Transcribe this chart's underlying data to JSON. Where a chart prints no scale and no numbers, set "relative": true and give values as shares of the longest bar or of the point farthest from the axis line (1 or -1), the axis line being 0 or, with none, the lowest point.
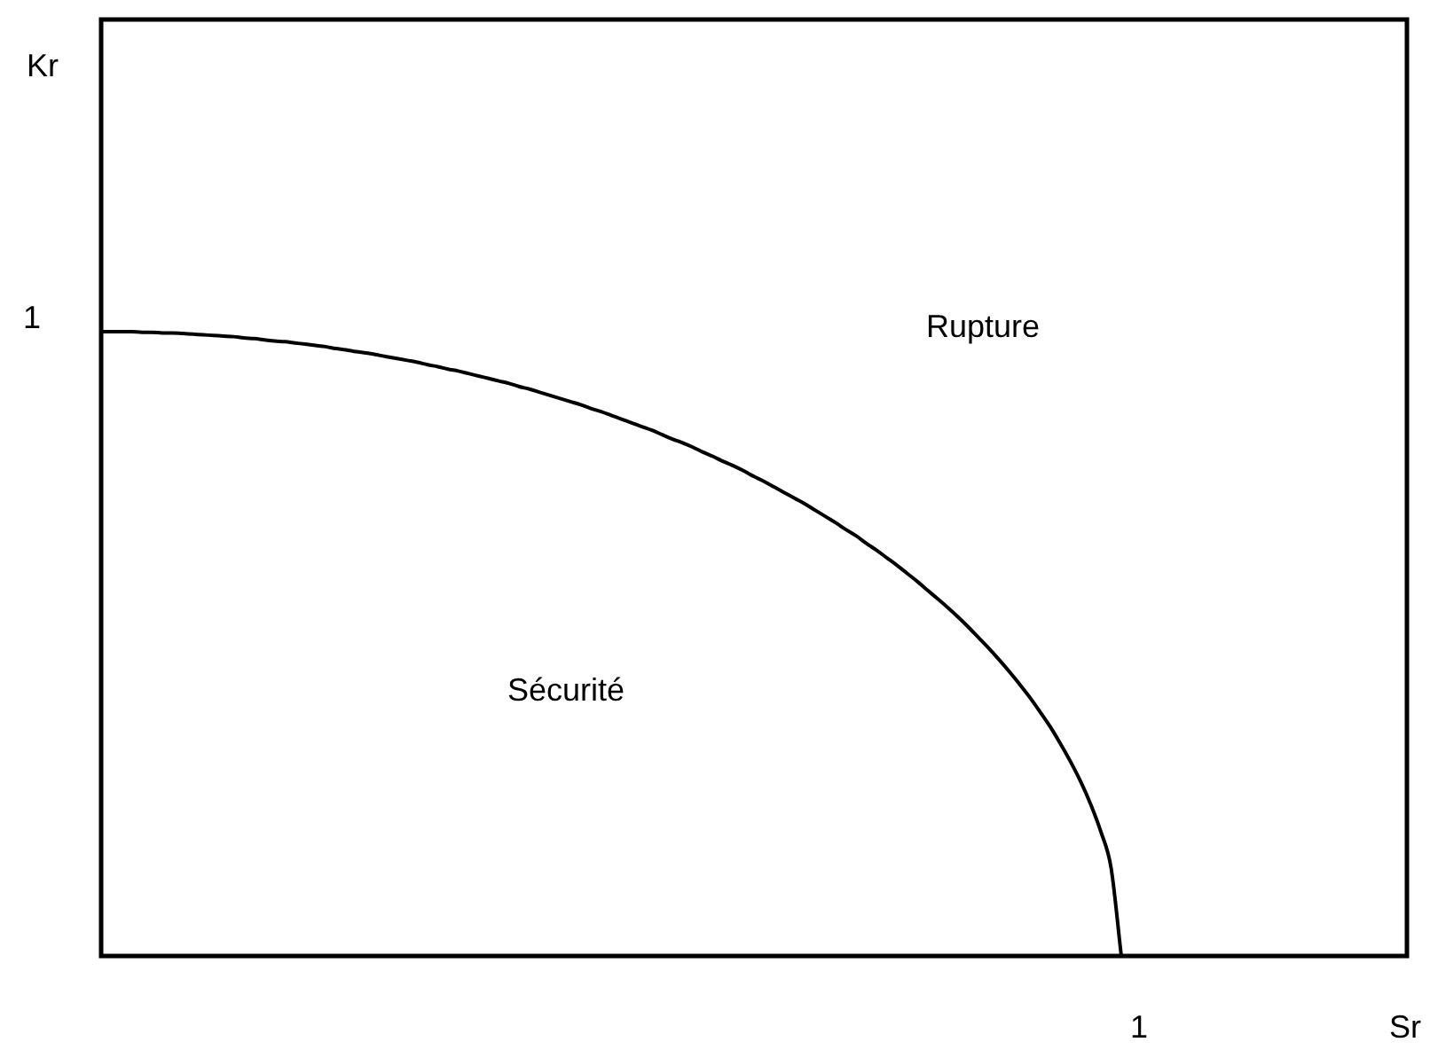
{
  "chart_data": {
    "type": "line",
    "relative": true,
    "categories": [
      null,
      null,
      null,
      null,
      null,
      null,
      null,
      null,
      null,
      null,
      null,
      null,
      null,
      null,
      null,
      null,
      null,
      null,
      null,
      null,
      null,
      null,
      null,
      null,
      null,
      null,
      null,
      null,
      null,
      null,
      null,
      null,
      null,
      null,
      null,
      null,
      null,
      null,
      null,
      null,
      null,
      null,
      null,
      null,
      null,
      null,
      null,
      null,
      null,
      null,
      null,
      null,
      null,
      null,
      null,
      null,
      null,
      null,
      null,
      null,
      null,
      null,
      null,
      null,
      null,
      null,
      null,
      null,
      null,
      null,
      null,
      null,
      null,
      null,
      null,
      null,
      null,
      null,
      null,
      null,
      null,
      null,
      null,
      null,
      null,
      null,
      null,
      null,
      null,
      null,
      null,
      null,
      null,
      null,
      null,
      null,
      null,
      null,
      null,
      null,
      null
    ],
    "values": [
      1,
      1,
      1,
      1,
      0.999,
      0.999,
      0.998,
      0.998,
      0.997,
      0.996,
      0.995,
      0.994,
      0.993,
      0.992,
      0.99,
      0.989,
      0.987,
      0.985,
      0.984,
      0.982,
      0.98,
      0.978,
      0.976,
      0.973,
      0.971,
      0.968,
      0.966,
      0.963,
      0.96,
      0.957,
      0.954,
      0.951,
      0.947,
      0.944,
      0.94,
      0.937,
      0.933,
      0.929,
      0.925,
      0.921,
      0.917,
      0.912,
      0.908,
      0.903,
      0.898,
      0.893,
      0.888,
      0.883,
      0.877,
      0.872,
      0.866,
      0.86,
      0.854,
      0.848,
      0.842,
      0.835,
      0.828,
      0.822,
      0.815,
      0.807,
      0.8,
      0.792,
      0.785,
      0.777,
      0.768,
      0.76,
      0.751,
      0.742,
      0.733,
      0.724,
      0.714,
      0.704,
      0.694,
      0.683,
      0.673,
      0.661,
      0.65,
      0.638,
      0.626,
      0.613,
      0.6,
      0.586,
      0.572,
      0.558,
      0.543,
      0.527,
      0.51,
      0.493,
      0.475,
      0.456,
      0.436,
      0.415,
      0.392,
      0.368,
      0.341,
      0.312,
      0.28,
      0.243,
      0.199,
      0.141,
      0
    ],
    "color": "#000000",
    "marker": "none",
    "line_style": "solid",
    "annotations": [
      "Kr",
      "1",
      "Rupture",
      "Sécurité",
      "1",
      "Sr"
    ]
  }
}
